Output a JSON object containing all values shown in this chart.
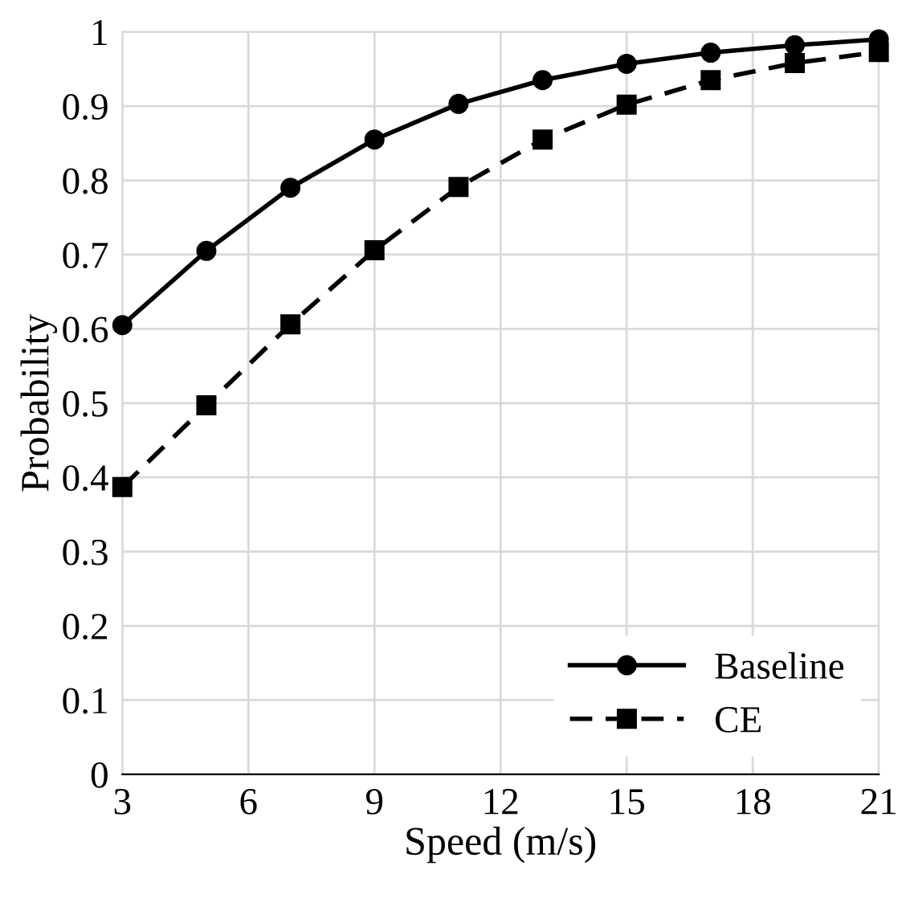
{
  "chart_data": {
    "type": "line",
    "xlabel": "Speed (m/s)",
    "ylabel": "Probability",
    "x": [
      3,
      5,
      7,
      9,
      11,
      13,
      15,
      17,
      19,
      21
    ],
    "series": [
      {
        "name": "Baseline",
        "color": "#000000",
        "marker": "circle",
        "line_style": "solid",
        "values": [
          0.605,
          0.705,
          0.79,
          0.855,
          0.903,
          0.935,
          0.957,
          0.972,
          0.982,
          0.99
        ]
      },
      {
        "name": "CE",
        "color": "#000000",
        "marker": "square",
        "line_style": "dashed",
        "values": [
          0.387,
          0.497,
          0.606,
          0.706,
          0.791,
          0.855,
          0.902,
          0.935,
          0.958,
          0.973
        ]
      }
    ],
    "xlim": [
      3,
      21
    ],
    "xticks": [
      3,
      6,
      9,
      12,
      15,
      18,
      21
    ],
    "ylim": [
      0,
      1
    ],
    "yticks": [
      0,
      0.1,
      0.2,
      0.3,
      0.4,
      0.5,
      0.6,
      0.7,
      0.8,
      0.9,
      1
    ],
    "grid": true,
    "legend": "bottom right"
  }
}
